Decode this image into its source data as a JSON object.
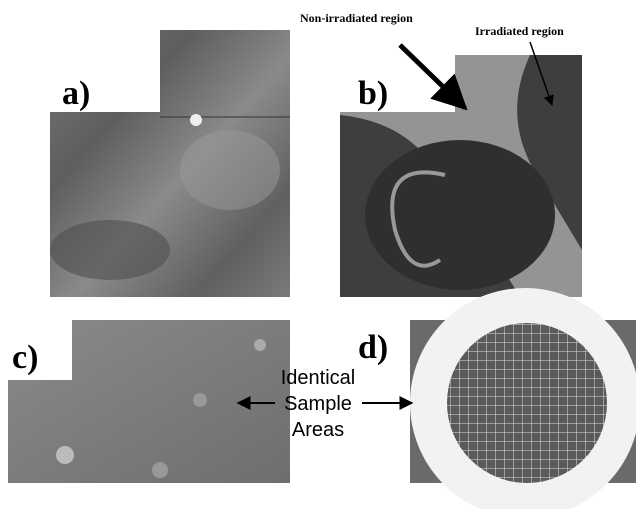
{
  "panels": [
    {
      "label": "a)"
    },
    {
      "label": "b)",
      "annotations": [
        "Non-irradiated region",
        "Irradiated region"
      ]
    },
    {
      "label": "c)"
    },
    {
      "label": "d)"
    }
  ],
  "callout": {
    "lines": [
      "Identical",
      "Sample",
      "Areas"
    ]
  }
}
